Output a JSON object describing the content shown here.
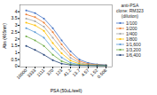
{
  "chart_data": {
    "type": "line",
    "title": "anti-PSA\nclone: RM323\n(dilution)",
    "xlabel": "PSA (50uL/well)",
    "ylabel": "Abs (405nm)",
    "categories": [
      "10000",
      "3333",
      "1111",
      "370",
      "123",
      "41.2",
      "13.7",
      "4.57",
      "1.52",
      "0.508"
    ],
    "series": [
      {
        "name": "1/100",
        "color": "#4472c4",
        "values": [
          4.1,
          3.9,
          3.5,
          2.8,
          1.9,
          1.1,
          0.5,
          0.25,
          0.15,
          0.1
        ]
      },
      {
        "name": "1/200",
        "color": "#ed7d31",
        "values": [
          3.8,
          3.6,
          3.2,
          2.5,
          1.6,
          0.85,
          0.38,
          0.18,
          0.12,
          0.08
        ]
      },
      {
        "name": "1/400",
        "color": "#a5a5a5",
        "values": [
          3.5,
          3.3,
          2.9,
          2.1,
          1.3,
          0.62,
          0.26,
          0.13,
          0.1,
          0.07
        ]
      },
      {
        "name": "1/800",
        "color": "#ffc000",
        "values": [
          3.2,
          3.0,
          2.6,
          1.7,
          0.95,
          0.42,
          0.18,
          0.1,
          0.08,
          0.06
        ]
      },
      {
        "name": "1/1,600",
        "color": "#5b9bd5",
        "values": [
          2.8,
          2.5,
          2.1,
          1.3,
          0.65,
          0.26,
          0.12,
          0.08,
          0.07,
          0.06
        ]
      },
      {
        "name": "1/3,200",
        "color": "#70ad47",
        "values": [
          2.2,
          1.9,
          1.5,
          0.85,
          0.38,
          0.15,
          0.09,
          0.07,
          0.06,
          0.05
        ]
      },
      {
        "name": "1/6,400",
        "color": "#264478",
        "values": [
          1.5,
          1.2,
          0.85,
          0.45,
          0.2,
          0.1,
          0.07,
          0.06,
          0.05,
          0.05
        ]
      }
    ],
    "ylim": [
      -0.05,
      4.5
    ],
    "yticks": [
      0.0,
      0.5,
      1.0,
      1.5,
      2.0,
      2.5,
      3.0,
      3.5,
      4.0
    ],
    "marker": "o",
    "legend": "right",
    "grid": false
  }
}
